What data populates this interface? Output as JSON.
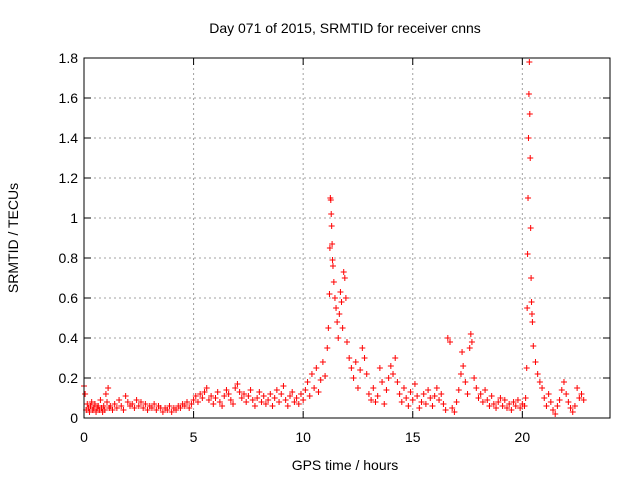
{
  "chart_data": {
    "type": "scatter",
    "title": "Day 071 of 2015, SRMTID for receiver cnns",
    "xlabel": "GPS time / hours",
    "ylabel": "SRMTID / TECUs",
    "xlim": [
      0,
      24
    ],
    "ylim": [
      0,
      1.8
    ],
    "x_ticks": [
      0,
      5,
      10,
      15,
      20
    ],
    "x_tick_labels": [
      "0",
      "5",
      "10",
      "15",
      "20"
    ],
    "y_ticks": [
      0,
      0.2,
      0.4,
      0.6,
      0.8,
      1.0,
      1.2,
      1.4,
      1.6,
      1.8
    ],
    "y_tick_labels": [
      "0",
      "0.2",
      "0.4",
      "0.6",
      "0.8",
      "1",
      "1.2",
      "1.4",
      "1.6",
      "1.8"
    ],
    "grid": true,
    "marker": "+",
    "series": [
      {
        "name": "SRMTID",
        "color": "#ff0000",
        "points": [
          [
            0.0,
            0.16
          ],
          [
            0.05,
            0.12
          ],
          [
            0.1,
            0.04
          ],
          [
            0.15,
            0.07
          ],
          [
            0.2,
            0.05
          ],
          [
            0.25,
            0.03
          ],
          [
            0.3,
            0.06
          ],
          [
            0.35,
            0.08
          ],
          [
            0.4,
            0.04
          ],
          [
            0.45,
            0.05
          ],
          [
            0.5,
            0.07
          ],
          [
            0.55,
            0.03
          ],
          [
            0.6,
            0.05
          ],
          [
            0.65,
            0.06
          ],
          [
            0.7,
            0.04
          ],
          [
            0.75,
            0.09
          ],
          [
            0.8,
            0.05
          ],
          [
            0.85,
            0.03
          ],
          [
            0.9,
            0.06
          ],
          [
            0.95,
            0.04
          ],
          [
            1.0,
            0.12
          ],
          [
            1.05,
            0.08
          ],
          [
            1.1,
            0.15
          ],
          [
            1.15,
            0.05
          ],
          [
            1.2,
            0.06
          ],
          [
            1.3,
            0.04
          ],
          [
            1.4,
            0.07
          ],
          [
            1.5,
            0.05
          ],
          [
            1.6,
            0.09
          ],
          [
            1.7,
            0.06
          ],
          [
            1.8,
            0.04
          ],
          [
            1.9,
            0.11
          ],
          [
            2.0,
            0.08
          ],
          [
            2.1,
            0.06
          ],
          [
            2.2,
            0.07
          ],
          [
            2.3,
            0.05
          ],
          [
            2.4,
            0.09
          ],
          [
            2.5,
            0.06
          ],
          [
            2.6,
            0.08
          ],
          [
            2.7,
            0.05
          ],
          [
            2.8,
            0.07
          ],
          [
            2.9,
            0.04
          ],
          [
            3.0,
            0.06
          ],
          [
            3.1,
            0.05
          ],
          [
            3.2,
            0.07
          ],
          [
            3.3,
            0.04
          ],
          [
            3.4,
            0.06
          ],
          [
            3.5,
            0.05
          ],
          [
            3.6,
            0.03
          ],
          [
            3.7,
            0.05
          ],
          [
            3.8,
            0.04
          ],
          [
            3.9,
            0.06
          ],
          [
            4.0,
            0.03
          ],
          [
            4.1,
            0.05
          ],
          [
            4.2,
            0.04
          ],
          [
            4.3,
            0.06
          ],
          [
            4.4,
            0.05
          ],
          [
            4.5,
            0.07
          ],
          [
            4.6,
            0.06
          ],
          [
            4.7,
            0.08
          ],
          [
            4.8,
            0.05
          ],
          [
            4.9,
            0.07
          ],
          [
            5.0,
            0.09
          ],
          [
            5.1,
            0.11
          ],
          [
            5.2,
            0.08
          ],
          [
            5.3,
            0.12
          ],
          [
            5.4,
            0.1
          ],
          [
            5.5,
            0.13
          ],
          [
            5.6,
            0.15
          ],
          [
            5.7,
            0.09
          ],
          [
            5.8,
            0.11
          ],
          [
            5.9,
            0.07
          ],
          [
            6.0,
            0.1
          ],
          [
            6.1,
            0.13
          ],
          [
            6.2,
            0.08
          ],
          [
            6.3,
            0.06
          ],
          [
            6.4,
            0.11
          ],
          [
            6.5,
            0.14
          ],
          [
            6.6,
            0.12
          ],
          [
            6.7,
            0.09
          ],
          [
            6.8,
            0.07
          ],
          [
            6.9,
            0.15
          ],
          [
            7.0,
            0.17
          ],
          [
            7.1,
            0.13
          ],
          [
            7.2,
            0.1
          ],
          [
            7.3,
            0.12
          ],
          [
            7.4,
            0.08
          ],
          [
            7.5,
            0.11
          ],
          [
            7.6,
            0.14
          ],
          [
            7.7,
            0.09
          ],
          [
            7.8,
            0.06
          ],
          [
            7.9,
            0.1
          ],
          [
            8.0,
            0.13
          ],
          [
            8.1,
            0.08
          ],
          [
            8.2,
            0.11
          ],
          [
            8.3,
            0.07
          ],
          [
            8.4,
            0.09
          ],
          [
            8.5,
            0.12
          ],
          [
            8.6,
            0.06
          ],
          [
            8.7,
            0.1
          ],
          [
            8.8,
            0.14
          ],
          [
            8.9,
            0.08
          ],
          [
            9.0,
            0.12
          ],
          [
            9.1,
            0.16
          ],
          [
            9.2,
            0.09
          ],
          [
            9.3,
            0.06
          ],
          [
            9.4,
            0.11
          ],
          [
            9.5,
            0.13
          ],
          [
            9.6,
            0.08
          ],
          [
            9.7,
            0.1
          ],
          [
            9.8,
            0.07
          ],
          [
            9.9,
            0.12
          ],
          [
            10.0,
            0.09
          ],
          [
            10.1,
            0.14
          ],
          [
            10.2,
            0.18
          ],
          [
            10.3,
            0.11
          ],
          [
            10.4,
            0.22
          ],
          [
            10.5,
            0.15
          ],
          [
            10.6,
            0.25
          ],
          [
            10.7,
            0.13
          ],
          [
            10.8,
            0.19
          ],
          [
            10.9,
            0.28
          ],
          [
            11.0,
            0.21
          ],
          [
            11.1,
            0.35
          ],
          [
            11.15,
            0.45
          ],
          [
            11.2,
            0.62
          ],
          [
            11.22,
            0.85
          ],
          [
            11.24,
            1.1
          ],
          [
            11.26,
            1.09
          ],
          [
            11.28,
            1.02
          ],
          [
            11.3,
            0.96
          ],
          [
            11.32,
            0.87
          ],
          [
            11.34,
            0.79
          ],
          [
            11.36,
            0.76
          ],
          [
            11.4,
            0.68
          ],
          [
            11.45,
            0.6
          ],
          [
            11.5,
            0.55
          ],
          [
            11.55,
            0.48
          ],
          [
            11.6,
            0.4
          ],
          [
            11.65,
            0.52
          ],
          [
            11.7,
            0.63
          ],
          [
            11.75,
            0.58
          ],
          [
            11.8,
            0.45
          ],
          [
            11.85,
            0.73
          ],
          [
            11.9,
            0.7
          ],
          [
            11.95,
            0.6
          ],
          [
            12.0,
            0.38
          ],
          [
            12.1,
            0.3
          ],
          [
            12.2,
            0.25
          ],
          [
            12.3,
            0.2
          ],
          [
            12.4,
            0.28
          ],
          [
            12.5,
            0.15
          ],
          [
            12.6,
            0.24
          ],
          [
            12.7,
            0.35
          ],
          [
            12.8,
            0.3
          ],
          [
            12.9,
            0.22
          ],
          [
            13.0,
            0.12
          ],
          [
            13.1,
            0.09
          ],
          [
            13.2,
            0.15
          ],
          [
            13.3,
            0.08
          ],
          [
            13.4,
            0.11
          ],
          [
            13.5,
            0.25
          ],
          [
            13.6,
            0.18
          ],
          [
            13.7,
            0.07
          ],
          [
            13.8,
            0.14
          ],
          [
            13.9,
            0.2
          ],
          [
            14.0,
            0.26
          ],
          [
            14.1,
            0.22
          ],
          [
            14.2,
            0.3
          ],
          [
            14.3,
            0.18
          ],
          [
            14.4,
            0.12
          ],
          [
            14.5,
            0.08
          ],
          [
            14.6,
            0.15
          ],
          [
            14.7,
            0.1
          ],
          [
            14.8,
            0.06
          ],
          [
            14.9,
            0.13
          ],
          [
            15.0,
            0.09
          ],
          [
            15.1,
            0.17
          ],
          [
            15.2,
            0.11
          ],
          [
            15.3,
            0.05
          ],
          [
            15.4,
            0.08
          ],
          [
            15.5,
            0.12
          ],
          [
            15.6,
            0.07
          ],
          [
            15.7,
            0.14
          ],
          [
            15.8,
            0.1
          ],
          [
            15.9,
            0.06
          ],
          [
            16.0,
            0.11
          ],
          [
            16.1,
            0.15
          ],
          [
            16.2,
            0.09
          ],
          [
            16.3,
            0.12
          ],
          [
            16.4,
            0.07
          ],
          [
            16.5,
            0.04
          ],
          [
            16.6,
            0.4
          ],
          [
            16.7,
            0.38
          ],
          [
            16.8,
            0.05
          ],
          [
            16.9,
            0.03
          ],
          [
            17.0,
            0.08
          ],
          [
            17.1,
            0.14
          ],
          [
            17.2,
            0.22
          ],
          [
            17.25,
            0.33
          ],
          [
            17.3,
            0.26
          ],
          [
            17.4,
            0.18
          ],
          [
            17.5,
            0.12
          ],
          [
            17.6,
            0.35
          ],
          [
            17.65,
            0.42
          ],
          [
            17.7,
            0.38
          ],
          [
            17.8,
            0.2
          ],
          [
            17.9,
            0.15
          ],
          [
            18.0,
            0.1
          ],
          [
            18.1,
            0.12
          ],
          [
            18.2,
            0.08
          ],
          [
            18.3,
            0.14
          ],
          [
            18.4,
            0.09
          ],
          [
            18.5,
            0.06
          ],
          [
            18.6,
            0.11
          ],
          [
            18.7,
            0.07
          ],
          [
            18.8,
            0.05
          ],
          [
            18.9,
            0.08
          ],
          [
            19.0,
            0.1
          ],
          [
            19.1,
            0.06
          ],
          [
            19.2,
            0.09
          ],
          [
            19.3,
            0.05
          ],
          [
            19.4,
            0.07
          ],
          [
            19.5,
            0.04
          ],
          [
            19.6,
            0.08
          ],
          [
            19.7,
            0.06
          ],
          [
            19.8,
            0.09
          ],
          [
            19.9,
            0.05
          ],
          [
            20.0,
            0.07
          ],
          [
            20.1,
            0.06
          ],
          [
            20.15,
            0.1
          ],
          [
            20.2,
            0.25
          ],
          [
            20.22,
            0.55
          ],
          [
            20.24,
            0.82
          ],
          [
            20.26,
            1.1
          ],
          [
            20.28,
            1.4
          ],
          [
            20.3,
            1.62
          ],
          [
            20.32,
            1.78
          ],
          [
            20.34,
            1.52
          ],
          [
            20.36,
            1.3
          ],
          [
            20.38,
            0.95
          ],
          [
            20.4,
            0.7
          ],
          [
            20.42,
            0.58
          ],
          [
            20.44,
            0.52
          ],
          [
            20.46,
            0.48
          ],
          [
            20.5,
            0.36
          ],
          [
            20.6,
            0.28
          ],
          [
            20.7,
            0.22
          ],
          [
            20.8,
            0.18
          ],
          [
            20.9,
            0.15
          ],
          [
            21.0,
            0.1
          ],
          [
            21.1,
            0.06
          ],
          [
            21.2,
            0.12
          ],
          [
            21.3,
            0.08
          ],
          [
            21.4,
            0.04
          ],
          [
            21.5,
            0.02
          ],
          [
            21.6,
            0.06
          ],
          [
            21.7,
            0.09
          ],
          [
            21.8,
            0.14
          ],
          [
            21.9,
            0.18
          ],
          [
            22.0,
            0.12
          ],
          [
            22.1,
            0.08
          ],
          [
            22.2,
            0.05
          ],
          [
            22.3,
            0.03
          ],
          [
            22.4,
            0.06
          ],
          [
            22.5,
            0.15
          ],
          [
            22.6,
            0.1
          ],
          [
            22.7,
            0.12
          ],
          [
            22.8,
            0.09
          ]
        ]
      }
    ]
  }
}
